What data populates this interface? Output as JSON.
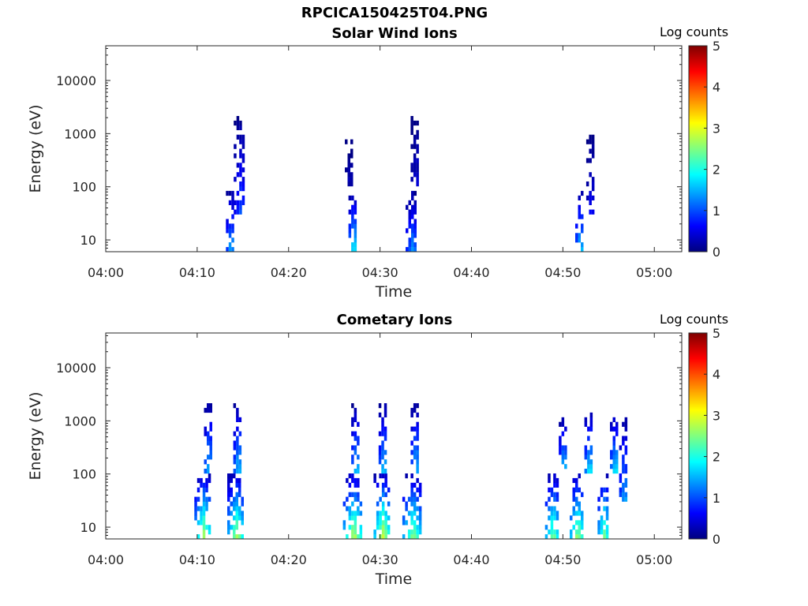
{
  "page_title": "RPCICA150425T04.PNG",
  "colorbar": {
    "label": "Log counts",
    "ticks": [
      "0",
      "1",
      "2",
      "3",
      "4",
      "5"
    ]
  },
  "panels": [
    {
      "title": "Solar Wind Ions",
      "xlabel": "Time",
      "ylabel": "Energy (eV)"
    },
    {
      "title": "Cometary Ions",
      "xlabel": "Time",
      "ylabel": "Energy (eV)"
    }
  ],
  "colors": {
    "colormap": "jet",
    "axis": "#262626",
    "background": "#ffffff"
  },
  "chart_data": [
    {
      "type": "heatmap",
      "title": "Solar Wind Ions",
      "xlabel": "Time",
      "ylabel": "Energy (eV)",
      "xticks": [
        "04:00",
        "04:10",
        "04:20",
        "04:30",
        "04:40",
        "04:50",
        "05:00"
      ],
      "xlim": [
        "04:00",
        "05:03"
      ],
      "yscale": "log",
      "yticks": [
        "10",
        "100",
        "1000",
        "10000"
      ],
      "ylim": [
        6,
        45000
      ],
      "clabel": "Log counts",
      "clim": [
        0,
        5
      ],
      "blobs": [
        {
          "t": 13.6,
          "w": 0.9,
          "e": [
            6,
            90
          ],
          "peak": 1.6
        },
        {
          "t": 14.6,
          "w": 1.1,
          "e": [
            30,
            2000
          ],
          "peak": 1.0
        },
        {
          "t": 27.0,
          "w": 1.0,
          "e": [
            6,
            80
          ],
          "peak": 2.0
        },
        {
          "t": 26.6,
          "w": 0.8,
          "e": [
            100,
            900
          ],
          "peak": 0.3
        },
        {
          "t": 33.4,
          "w": 1.2,
          "e": [
            6,
            80
          ],
          "peak": 1.4
        },
        {
          "t": 33.8,
          "w": 0.8,
          "e": [
            100,
            2000
          ],
          "peak": 0.5
        },
        {
          "t": 51.8,
          "w": 1.0,
          "e": [
            6,
            80
          ],
          "peak": 1.8
        },
        {
          "t": 53.0,
          "w": 1.0,
          "e": [
            30,
            1000
          ],
          "peak": 0.7
        }
      ]
    },
    {
      "type": "heatmap",
      "title": "Cometary Ions",
      "xlabel": "Time",
      "ylabel": "Energy (eV)",
      "xticks": [
        "04:00",
        "04:10",
        "04:20",
        "04:30",
        "04:40",
        "04:50",
        "05:00"
      ],
      "xlim": [
        "04:00",
        "05:03"
      ],
      "yscale": "log",
      "yticks": [
        "10",
        "100",
        "1000",
        "10000"
      ],
      "ylim": [
        6,
        45000
      ],
      "clabel": "Log counts",
      "clim": [
        0,
        5
      ],
      "blobs": [
        {
          "t": 10.6,
          "w": 1.8,
          "e": [
            6,
            100
          ],
          "peak": 2.8
        },
        {
          "t": 11.2,
          "w": 0.9,
          "e": [
            100,
            2000
          ],
          "peak": 1.8
        },
        {
          "t": 14.2,
          "w": 1.8,
          "e": [
            6,
            100
          ],
          "peak": 2.8
        },
        {
          "t": 14.4,
          "w": 0.9,
          "e": [
            100,
            2000
          ],
          "peak": 1.8
        },
        {
          "t": 27.0,
          "w": 2.0,
          "e": [
            6,
            100
          ],
          "peak": 2.9
        },
        {
          "t": 27.3,
          "w": 0.8,
          "e": [
            100,
            2000
          ],
          "peak": 1.8
        },
        {
          "t": 30.2,
          "w": 1.8,
          "e": [
            6,
            100
          ],
          "peak": 3.0
        },
        {
          "t": 30.3,
          "w": 0.8,
          "e": [
            100,
            2000
          ],
          "peak": 1.8
        },
        {
          "t": 33.5,
          "w": 2.0,
          "e": [
            6,
            100
          ],
          "peak": 2.6
        },
        {
          "t": 33.8,
          "w": 0.8,
          "e": [
            100,
            2000
          ],
          "peak": 1.8
        },
        {
          "t": 48.8,
          "w": 1.4,
          "e": [
            6,
            100
          ],
          "peak": 2.6
        },
        {
          "t": 50.0,
          "w": 0.8,
          "e": [
            100,
            1200
          ],
          "peak": 1.8
        },
        {
          "t": 51.5,
          "w": 1.4,
          "e": [
            6,
            100
          ],
          "peak": 2.8
        },
        {
          "t": 52.8,
          "w": 0.8,
          "e": [
            100,
            1500
          ],
          "peak": 2.0
        },
        {
          "t": 54.4,
          "w": 1.2,
          "e": [
            6,
            100
          ],
          "peak": 2.6
        },
        {
          "t": 55.6,
          "w": 1.0,
          "e": [
            100,
            1400
          ],
          "peak": 2.0
        },
        {
          "t": 56.6,
          "w": 0.8,
          "e": [
            30,
            1200
          ],
          "peak": 1.6
        }
      ]
    }
  ]
}
